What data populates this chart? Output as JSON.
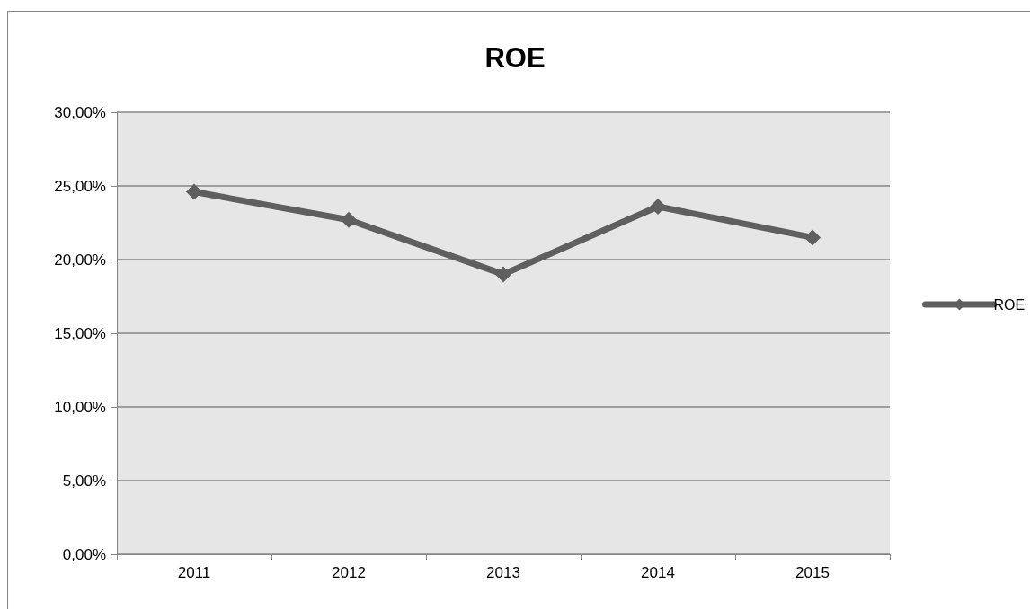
{
  "chart_data": {
    "type": "line",
    "title": "ROE",
    "categories": [
      "2011",
      "2012",
      "2013",
      "2014",
      "2015"
    ],
    "series": [
      {
        "name": "ROE",
        "color": "#5f5f5f",
        "values": [
          24.6,
          22.7,
          19.0,
          23.6,
          21.5
        ]
      }
    ],
    "ylim": [
      0,
      30
    ],
    "yticks": [
      {
        "value": 0,
        "label": "0,00%"
      },
      {
        "value": 5,
        "label": "5,00%"
      },
      {
        "value": 10,
        "label": "10,00%"
      },
      {
        "value": 15,
        "label": "15,00%"
      },
      {
        "value": 20,
        "label": "20,00%"
      },
      {
        "value": 25,
        "label": "25,00%"
      },
      {
        "value": 30,
        "label": "30,00%"
      }
    ],
    "grid": "y",
    "legend": "right",
    "marker": "diamond",
    "line_style": "solid"
  }
}
